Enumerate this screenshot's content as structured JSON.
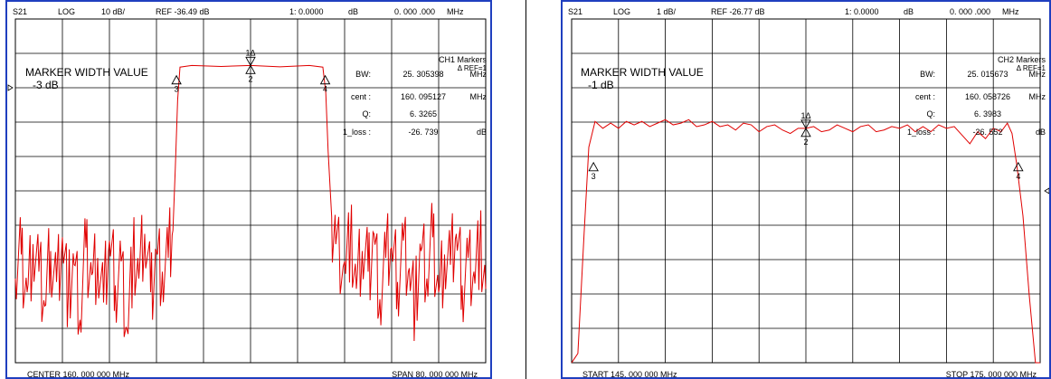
{
  "chart_data": [
    {
      "type": "line",
      "param": "S21",
      "format": "LOG",
      "scale": "10 dB/",
      "ref": "REF -36.49 dB",
      "marker_readout": "1: 0.0000",
      "marker_readout_unit": "dB",
      "marker_freq": "0. 000 .000",
      "marker_freq_unit": "MHz",
      "header_extra": "",
      "title": "MARKER WIDTH VALUE",
      "subtitle": "-3 dB",
      "markers_title": "CH1  Markers",
      "markers_ref": "Δ REF=1",
      "stats": [
        {
          "label": "BW:",
          "value": "25. 305398",
          "unit": "MHz"
        },
        {
          "label": "cent  :",
          "value": "160. 095127",
          "unit": "MHz"
        },
        {
          "label": "Q:",
          "value": "6. 3265",
          "unit": ""
        },
        {
          "label": "1_loss    :",
          "value": "-26. 739",
          "unit": "dB"
        }
      ],
      "footer_left": "CENTER   160. 000  000   MHz",
      "footer_right": "SPAN     80. 000  000   MHz",
      "x_range_mhz": [
        120,
        200
      ],
      "y_range_db": [
        -116.49,
        -16.49
      ],
      "y_ref_db": -36.49,
      "grid_divisions": [
        10,
        10
      ],
      "grid": true,
      "trace_color": "#e00000",
      "trace": {
        "x": [
          120,
          121,
          122,
          123,
          124,
          125,
          126,
          127,
          128,
          129,
          130,
          131,
          132,
          133,
          134,
          135,
          136,
          137,
          138,
          139,
          140,
          141,
          142,
          143,
          144,
          145,
          146,
          146.8,
          147.2,
          147.6,
          148,
          150,
          155,
          160,
          165,
          170,
          172.3,
          172.8,
          173.2,
          173.8,
          174.5,
          176,
          177,
          178,
          179,
          180,
          181,
          182,
          183,
          184,
          185,
          186,
          187,
          188,
          189,
          190,
          191,
          192,
          193,
          194,
          195,
          196,
          197,
          198,
          199,
          200
        ],
        "y": [
          -92,
          -85,
          -96,
          -82,
          -90,
          -100,
          -84,
          -93,
          -80,
          -97,
          -88,
          -104,
          -83,
          -91,
          -86,
          -99,
          -81,
          -94,
          -87,
          -107,
          -85,
          -92,
          -79,
          -96,
          -84,
          -90,
          -86,
          -78,
          -60,
          -40,
          -30.5,
          -30,
          -30.3,
          -30,
          -30.4,
          -30,
          -30.5,
          -38,
          -55,
          -74,
          -82,
          -87,
          -80,
          -95,
          -84,
          -90,
          -79,
          -98,
          -86,
          -83,
          -93,
          -81,
          -89,
          -100,
          -84,
          -92,
          -80,
          -96,
          -85,
          -88,
          -79,
          -94,
          -86,
          -90,
          -82,
          -95
        ]
      },
      "markers": [
        {
          "id": "1Δ",
          "x": 160.0,
          "y": -30.0,
          "pos": "top"
        },
        {
          "id": "2",
          "x": 160.0,
          "y": -30.0,
          "pos": "bottom"
        },
        {
          "id": "3",
          "x": 147.4,
          "y": -33.0,
          "pos": "bottom"
        },
        {
          "id": "4",
          "x": 172.7,
          "y": -33.0,
          "pos": "bottom"
        }
      ]
    },
    {
      "type": "line",
      "param": "S21",
      "format": "LOG",
      "scale": "1 dB/",
      "ref": "REF -26.77 dB",
      "marker_readout": "1: 0.0000",
      "marker_readout_unit": "dB",
      "marker_freq": "0. 000 .000",
      "marker_freq_unit": "MHz",
      "header_extra": "",
      "title": "MARKER WIDTH VALUE",
      "subtitle": "-1 dB",
      "markers_title": "CH2  Markers",
      "markers_ref": "Δ REF=1",
      "stats": [
        {
          "label": "BW:",
          "value": "25. 015673",
          "unit": "MHz"
        },
        {
          "label": "cent  :",
          "value": "160. 058726",
          "unit": "MHz"
        },
        {
          "label": "Q:",
          "value": "6. 3983",
          "unit": ""
        },
        {
          "label": "1_loss    :",
          "value": "-26. 552",
          "unit": "dB"
        }
      ],
      "footer_left": "START    145. 000  000   MHz",
      "footer_right": "STOP    175. 000  000   MHz",
      "x_range_mhz": [
        145,
        175
      ],
      "y_range_db": [
        -31.77,
        -21.77
      ],
      "y_ref_db": -26.77,
      "grid_divisions": [
        10,
        10
      ],
      "grid": true,
      "trace_color": "#e00000",
      "trace": {
        "x": [
          145,
          145.4,
          145.8,
          146.1,
          146.5,
          147,
          147.5,
          148,
          148.5,
          149,
          149.5,
          150,
          150.5,
          151,
          151.5,
          152,
          152.5,
          153,
          153.5,
          154,
          154.5,
          155,
          155.5,
          156,
          156.5,
          157,
          157.5,
          158,
          158.5,
          159,
          159.5,
          160,
          160.5,
          161,
          161.5,
          162,
          162.5,
          163,
          163.5,
          164,
          164.5,
          165,
          165.5,
          166,
          166.5,
          167,
          167.5,
          168,
          168.5,
          169,
          169.5,
          170,
          170.5,
          171,
          171.5,
          172,
          172.5,
          172.9,
          173.2,
          173.5,
          173.9,
          174.3,
          174.7,
          175
        ],
        "y": [
          -31.9,
          -31.5,
          -28.0,
          -25.5,
          -24.75,
          -24.95,
          -24.8,
          -24.95,
          -24.75,
          -24.85,
          -24.75,
          -24.9,
          -24.8,
          -24.7,
          -24.85,
          -24.8,
          -24.7,
          -24.9,
          -24.85,
          -24.75,
          -24.9,
          -24.85,
          -25.0,
          -24.8,
          -24.85,
          -25.05,
          -24.9,
          -24.85,
          -25.0,
          -25.1,
          -24.95,
          -24.95,
          -24.9,
          -25.05,
          -25.0,
          -24.85,
          -24.95,
          -25.05,
          -24.9,
          -24.85,
          -25.05,
          -25.0,
          -24.9,
          -24.95,
          -24.85,
          -25.05,
          -24.9,
          -25.05,
          -24.85,
          -24.95,
          -24.9,
          -25.15,
          -25.4,
          -25.05,
          -25.25,
          -24.95,
          -25.05,
          -24.8,
          -25.1,
          -26.0,
          -27.5,
          -29.8,
          -31.9,
          -31.9
        ]
      },
      "markers": [
        {
          "id": "1Δ",
          "x": 160.0,
          "y": -24.95,
          "pos": "top"
        },
        {
          "id": "2",
          "x": 160.0,
          "y": -24.95,
          "pos": "bottom"
        },
        {
          "id": "3",
          "x": 146.4,
          "y": -25.95,
          "pos": "bottom"
        },
        {
          "id": "4",
          "x": 173.6,
          "y": -25.95,
          "pos": "bottom"
        }
      ]
    }
  ]
}
